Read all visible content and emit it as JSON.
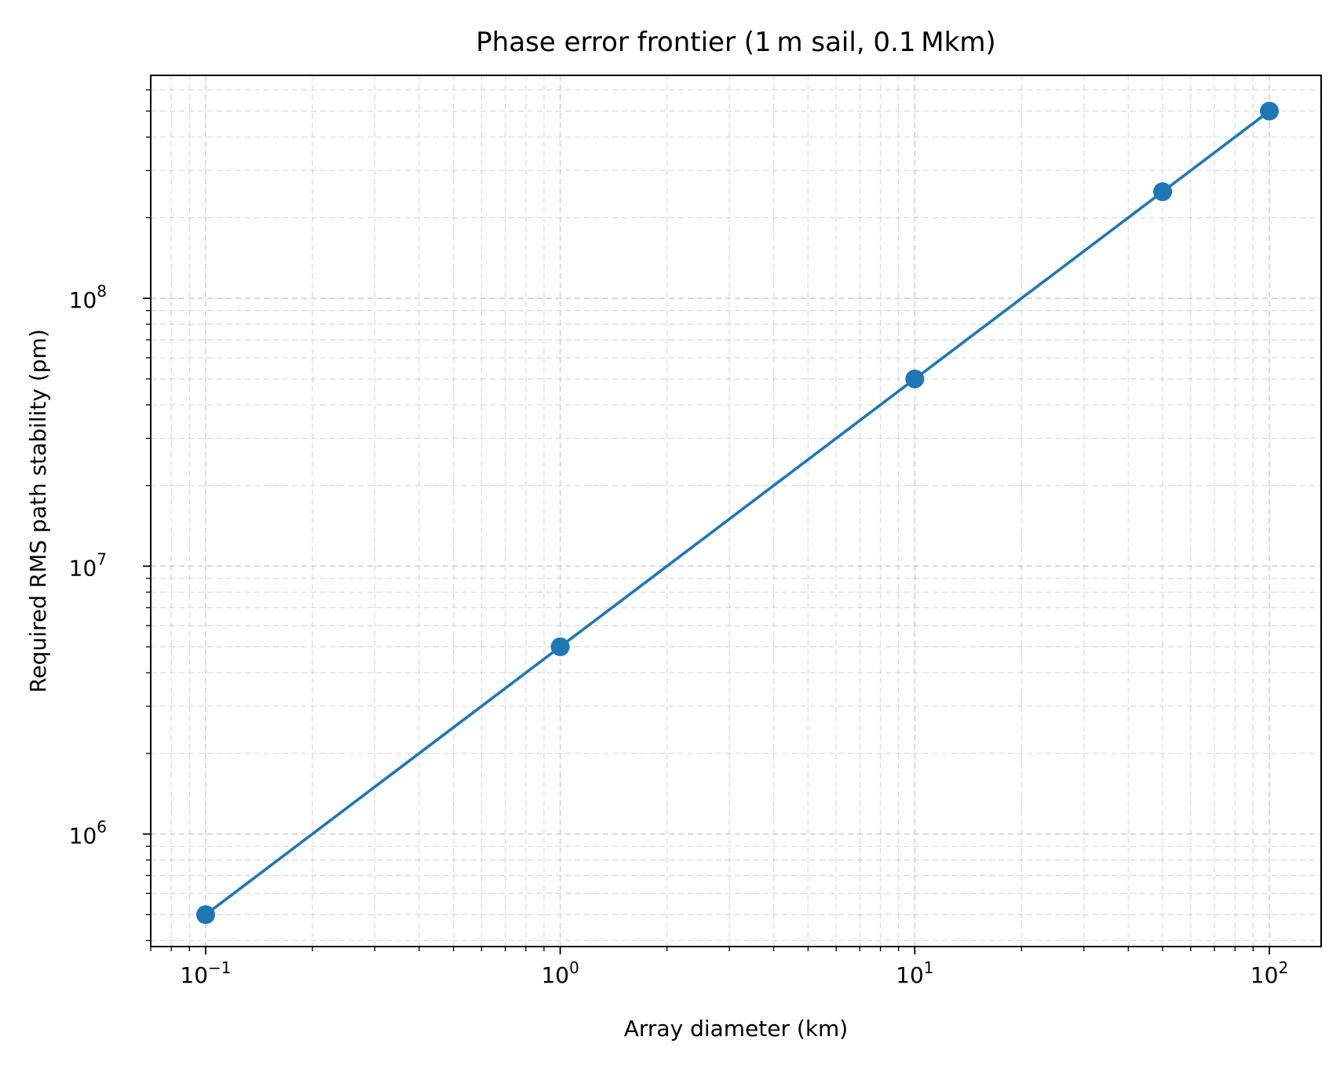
{
  "chart_data": {
    "type": "line",
    "title": "Phase error frontier (1 m sail, 0.1 Mkm)",
    "xlabel": "Array diameter (km)",
    "ylabel": "Required RMS path stability (pm)",
    "xscale": "log",
    "yscale": "log",
    "xlim": [
      0.07,
      140
    ],
    "ylim": [
      380000,
      680000000
    ],
    "grid": true,
    "grid_style": "dashed, major and minor",
    "legend": "none",
    "x_ticks": [
      {
        "value": 0.1,
        "base": "10",
        "exp": "−1"
      },
      {
        "value": 1,
        "base": "10",
        "exp": "0"
      },
      {
        "value": 10,
        "base": "10",
        "exp": "1"
      },
      {
        "value": 100,
        "base": "10",
        "exp": "2"
      }
    ],
    "y_ticks": [
      {
        "value": 1000000,
        "base": "10",
        "exp": "6"
      },
      {
        "value": 10000000,
        "base": "10",
        "exp": "7"
      },
      {
        "value": 100000000,
        "base": "10",
        "exp": "8"
      }
    ],
    "series": [
      {
        "color": "#1f77b4",
        "marker": "circle",
        "x": [
          0.1,
          1,
          10,
          50,
          100
        ],
        "y": [
          500000,
          5000000,
          50000000,
          250000000,
          500000000
        ]
      }
    ]
  }
}
